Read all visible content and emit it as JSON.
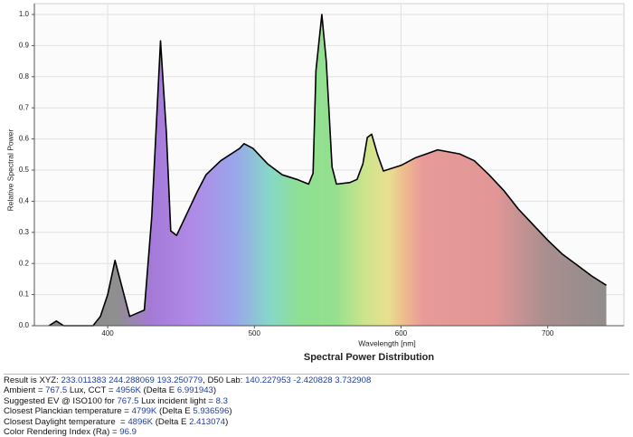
{
  "chart_data": {
    "type": "area",
    "title": "Spectral Power Distribution",
    "xlabel": "Wavelength [nm]",
    "ylabel": "Relative Spectral Power",
    "x": [
      360,
      365,
      370,
      380,
      390,
      395,
      400,
      405,
      410,
      415,
      420,
      425,
      430,
      436,
      440,
      443,
      447,
      455,
      461,
      467,
      477,
      490,
      493,
      499,
      509,
      519,
      529,
      537,
      540,
      542,
      546,
      549,
      553,
      556,
      565,
      570,
      574,
      577,
      580,
      584,
      588,
      600,
      610,
      619,
      625,
      640,
      650,
      660,
      670,
      680,
      690,
      700,
      710,
      720,
      730,
      740
    ],
    "values": [
      0.0,
      0.015,
      0.0,
      0.0,
      0.0,
      0.03,
      0.1,
      0.21,
      0.12,
      0.03,
      0.04,
      0.05,
      0.35,
      0.915,
      0.62,
      0.305,
      0.29,
      0.37,
      0.43,
      0.485,
      0.53,
      0.57,
      0.585,
      0.57,
      0.52,
      0.485,
      0.47,
      0.455,
      0.49,
      0.82,
      1.0,
      0.85,
      0.51,
      0.455,
      0.46,
      0.47,
      0.52,
      0.605,
      0.615,
      0.55,
      0.497,
      0.515,
      0.54,
      0.555,
      0.565,
      0.552,
      0.53,
      0.485,
      0.435,
      0.375,
      0.325,
      0.275,
      0.23,
      0.195,
      0.16,
      0.13
    ],
    "color": "#000000",
    "xlim": [
      350,
      752
    ],
    "ylim": [
      0,
      1.0
    ],
    "xticks": [
      400,
      500,
      600,
      700
    ],
    "yticks": [
      {
        "value": 0,
        "label": "0.0"
      },
      0.1,
      0.2,
      0.3,
      0.4,
      0.5,
      0.6,
      0.7,
      0.8,
      0.9,
      {
        "value": 1,
        "label": "1.0"
      }
    ],
    "grid": true
  },
  "report": {
    "lines": [
      [
        {
          "text": "Result is XYZ: ",
          "color": "#111111"
        },
        {
          "text": "233.011383 244.288069 193.250779",
          "color": "#1f3f9f"
        },
        {
          "text": ", D50 Lab: ",
          "color": "#111111"
        },
        {
          "text": "140.227953 -2.420828 3.732908",
          "color": "#1f3f9f"
        }
      ],
      [
        {
          "text": "Ambient = ",
          "color": "#111111"
        },
        {
          "text": "767.5",
          "color": "#1f3f9f"
        },
        {
          "text": " Lux, CCT = ",
          "color": "#111111"
        },
        {
          "text": "4956K",
          "color": "#1f3f9f"
        },
        {
          "text": " (Delta E ",
          "color": "#111111"
        },
        {
          "text": "6.991943",
          "color": "#1f3f9f"
        },
        {
          "text": ")",
          "color": "#111111"
        }
      ],
      [
        {
          "text": "Suggested EV @ ISO100 for ",
          "color": "#111111"
        },
        {
          "text": "767.5",
          "color": "#1f3f9f"
        },
        {
          "text": " Lux incident light = ",
          "color": "#111111"
        },
        {
          "text": "8.3",
          "color": "#1f3f9f"
        }
      ],
      [
        {
          "text": "Closest Planckian temperature = ",
          "color": "#111111"
        },
        {
          "text": "4799K",
          "color": "#1f3f9f"
        },
        {
          "text": " (Delta E ",
          "color": "#111111"
        },
        {
          "text": "5.936596",
          "color": "#1f3f9f"
        },
        {
          "text": ")",
          "color": "#111111"
        }
      ],
      [
        {
          "text": "Closest Daylight temperature  = ",
          "color": "#111111"
        },
        {
          "text": "4896K",
          "color": "#1f3f9f"
        },
        {
          "text": " (Delta E ",
          "color": "#111111"
        },
        {
          "text": "2.413074",
          "color": "#1f3f9f"
        },
        {
          "text": ")",
          "color": "#111111"
        }
      ],
      [
        {
          "text": "Color Rendering Index (Ra) = ",
          "color": "#111111"
        },
        {
          "text": "96.9",
          "color": "#1f3f9f"
        }
      ]
    ]
  }
}
